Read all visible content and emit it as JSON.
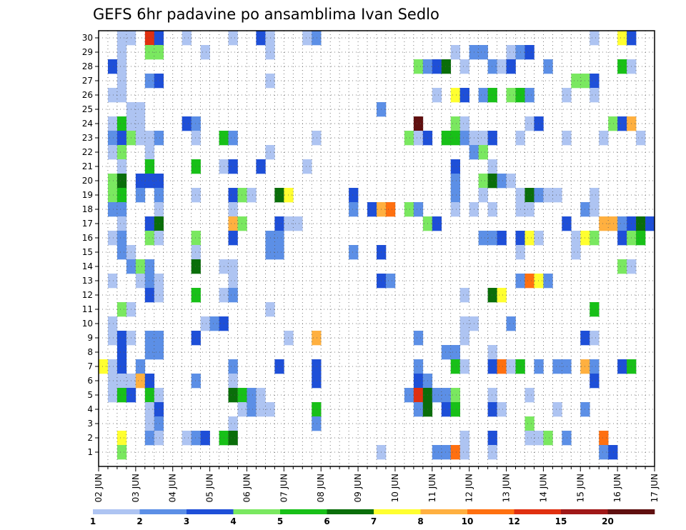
{
  "chart_data": {
    "type": "heatmap",
    "title": "GEFS 6hr padavine po ansamblima Ivan Sedlo",
    "y_ticks": [
      1,
      2,
      3,
      4,
      5,
      6,
      7,
      8,
      9,
      10,
      11,
      12,
      13,
      14,
      15,
      16,
      17,
      18,
      19,
      20,
      21,
      22,
      23,
      24,
      25,
      26,
      27,
      28,
      29,
      30
    ],
    "x_ticks": [
      "02 JUN",
      "03 JUN",
      "04 JUN",
      "05 JUN",
      "06 JUN",
      "07 JUN",
      "08 JUN",
      "09 JUN",
      "10 JUN",
      "11 JUN",
      "12 JUN",
      "13 JUN",
      "14 JUN",
      "15 JUN",
      "16 JUN",
      "17 JUN"
    ],
    "grid": true,
    "colorbar": {
      "labels": [
        "1",
        "2",
        "3",
        "4",
        "5",
        "6",
        "7",
        "8",
        "10",
        "12",
        "15",
        "20"
      ],
      "colors": [
        "#aec4f2",
        "#5c8fe6",
        "#1e4fd8",
        "#7ae860",
        "#18c018",
        "#0a6e0a",
        "#ffff30",
        "#ffb040",
        "#ff7010",
        "#e03010",
        "#a01818",
        "#601010"
      ]
    },
    "cells_note_levels": "Each cell: [column (6h step index from 02 JUN 00z), member row, color level 0-11]",
    "cells": [
      [
        2,
        30,
        0
      ],
      [
        3,
        30,
        0
      ],
      [
        5,
        30,
        9
      ],
      [
        6,
        30,
        2
      ],
      [
        9,
        30,
        0
      ],
      [
        14,
        30,
        0
      ],
      [
        17,
        30,
        2
      ],
      [
        18,
        30,
        0
      ],
      [
        22,
        30,
        0
      ],
      [
        23,
        30,
        1
      ],
      [
        53,
        30,
        0
      ],
      [
        56,
        30,
        6
      ],
      [
        57,
        30,
        2
      ],
      [
        2,
        29,
        0
      ],
      [
        5,
        29,
        3
      ],
      [
        6,
        29,
        3
      ],
      [
        11,
        29,
        0
      ],
      [
        18,
        29,
        0
      ],
      [
        38,
        29,
        0
      ],
      [
        40,
        29,
        1
      ],
      [
        41,
        29,
        1
      ],
      [
        44,
        29,
        0
      ],
      [
        45,
        29,
        1
      ],
      [
        46,
        29,
        2
      ],
      [
        1,
        28,
        2
      ],
      [
        2,
        28,
        0
      ],
      [
        34,
        28,
        3
      ],
      [
        35,
        28,
        1
      ],
      [
        36,
        28,
        2
      ],
      [
        37,
        28,
        5
      ],
      [
        39,
        28,
        0
      ],
      [
        42,
        28,
        1
      ],
      [
        43,
        28,
        0
      ],
      [
        44,
        28,
        2
      ],
      [
        48,
        28,
        1
      ],
      [
        56,
        28,
        4
      ],
      [
        57,
        28,
        0
      ],
      [
        2,
        27,
        0
      ],
      [
        5,
        27,
        1
      ],
      [
        6,
        27,
        2
      ],
      [
        18,
        27,
        0
      ],
      [
        51,
        27,
        3
      ],
      [
        52,
        27,
        3
      ],
      [
        53,
        27,
        2
      ],
      [
        1,
        26,
        0
      ],
      [
        2,
        26,
        0
      ],
      [
        36,
        26,
        0
      ],
      [
        38,
        26,
        6
      ],
      [
        39,
        26,
        2
      ],
      [
        41,
        26,
        1
      ],
      [
        42,
        26,
        4
      ],
      [
        44,
        26,
        3
      ],
      [
        45,
        26,
        4
      ],
      [
        46,
        26,
        1
      ],
      [
        50,
        26,
        0
      ],
      [
        53,
        26,
        0
      ],
      [
        3,
        25,
        0
      ],
      [
        4,
        25,
        0
      ],
      [
        30,
        25,
        1
      ],
      [
        1,
        24,
        0
      ],
      [
        2,
        24,
        4
      ],
      [
        3,
        24,
        0
      ],
      [
        4,
        24,
        0
      ],
      [
        9,
        24,
        2
      ],
      [
        10,
        24,
        1
      ],
      [
        34,
        24,
        11
      ],
      [
        38,
        24,
        3
      ],
      [
        39,
        24,
        0
      ],
      [
        46,
        24,
        0
      ],
      [
        47,
        24,
        2
      ],
      [
        55,
        24,
        3
      ],
      [
        56,
        24,
        2
      ],
      [
        57,
        24,
        7
      ],
      [
        1,
        23,
        1
      ],
      [
        2,
        23,
        2
      ],
      [
        3,
        23,
        3
      ],
      [
        4,
        23,
        0
      ],
      [
        5,
        23,
        0
      ],
      [
        6,
        23,
        1
      ],
      [
        10,
        23,
        0
      ],
      [
        13,
        23,
        4
      ],
      [
        14,
        23,
        1
      ],
      [
        23,
        23,
        0
      ],
      [
        33,
        23,
        3
      ],
      [
        34,
        23,
        0
      ],
      [
        35,
        23,
        2
      ],
      [
        37,
        23,
        4
      ],
      [
        38,
        23,
        4
      ],
      [
        39,
        23,
        1
      ],
      [
        40,
        23,
        0
      ],
      [
        41,
        23,
        0
      ],
      [
        42,
        23,
        2
      ],
      [
        45,
        23,
        0
      ],
      [
        50,
        23,
        0
      ],
      [
        54,
        23,
        0
      ],
      [
        58,
        23,
        0
      ],
      [
        1,
        22,
        0
      ],
      [
        2,
        22,
        3
      ],
      [
        5,
        22,
        0
      ],
      [
        18,
        22,
        0
      ],
      [
        40,
        22,
        1
      ],
      [
        41,
        22,
        3
      ],
      [
        2,
        21,
        0
      ],
      [
        5,
        21,
        4
      ],
      [
        10,
        21,
        4
      ],
      [
        13,
        21,
        0
      ],
      [
        14,
        21,
        2
      ],
      [
        17,
        21,
        2
      ],
      [
        22,
        21,
        0
      ],
      [
        38,
        21,
        2
      ],
      [
        42,
        21,
        0
      ],
      [
        1,
        20,
        3
      ],
      [
        2,
        20,
        5
      ],
      [
        4,
        20,
        2
      ],
      [
        5,
        20,
        2
      ],
      [
        6,
        20,
        2
      ],
      [
        38,
        20,
        1
      ],
      [
        41,
        20,
        3
      ],
      [
        42,
        20,
        5
      ],
      [
        43,
        20,
        1
      ],
      [
        44,
        20,
        0
      ],
      [
        1,
        19,
        3
      ],
      [
        2,
        19,
        4
      ],
      [
        4,
        19,
        1
      ],
      [
        6,
        19,
        1
      ],
      [
        10,
        19,
        0
      ],
      [
        14,
        19,
        2
      ],
      [
        15,
        19,
        3
      ],
      [
        16,
        19,
        0
      ],
      [
        19,
        19,
        5
      ],
      [
        20,
        19,
        6
      ],
      [
        27,
        19,
        2
      ],
      [
        38,
        19,
        1
      ],
      [
        41,
        19,
        0
      ],
      [
        45,
        19,
        0
      ],
      [
        46,
        19,
        5
      ],
      [
        47,
        19,
        1
      ],
      [
        48,
        19,
        0
      ],
      [
        49,
        19,
        0
      ],
      [
        53,
        19,
        0
      ],
      [
        1,
        18,
        1
      ],
      [
        2,
        18,
        1
      ],
      [
        6,
        18,
        0
      ],
      [
        14,
        18,
        0
      ],
      [
        27,
        18,
        1
      ],
      [
        29,
        18,
        2
      ],
      [
        30,
        18,
        7
      ],
      [
        31,
        18,
        8
      ],
      [
        33,
        18,
        3
      ],
      [
        34,
        18,
        1
      ],
      [
        38,
        18,
        0
      ],
      [
        40,
        18,
        0
      ],
      [
        42,
        18,
        0
      ],
      [
        45,
        18,
        0
      ],
      [
        46,
        18,
        0
      ],
      [
        52,
        18,
        1
      ],
      [
        53,
        18,
        0
      ],
      [
        2,
        17,
        0
      ],
      [
        5,
        17,
        2
      ],
      [
        6,
        17,
        5
      ],
      [
        14,
        17,
        7
      ],
      [
        15,
        17,
        3
      ],
      [
        19,
        17,
        2
      ],
      [
        20,
        17,
        0
      ],
      [
        21,
        17,
        0
      ],
      [
        35,
        17,
        3
      ],
      [
        36,
        17,
        2
      ],
      [
        50,
        17,
        2
      ],
      [
        54,
        17,
        7
      ],
      [
        55,
        17,
        7
      ],
      [
        56,
        17,
        1
      ],
      [
        57,
        17,
        2
      ],
      [
        58,
        17,
        5
      ],
      [
        59,
        17,
        2
      ],
      [
        1,
        16,
        0
      ],
      [
        2,
        16,
        1
      ],
      [
        5,
        16,
        3
      ],
      [
        6,
        16,
        0
      ],
      [
        10,
        16,
        3
      ],
      [
        14,
        16,
        2
      ],
      [
        18,
        16,
        1
      ],
      [
        19,
        16,
        1
      ],
      [
        41,
        16,
        1
      ],
      [
        42,
        16,
        1
      ],
      [
        43,
        16,
        2
      ],
      [
        45,
        16,
        2
      ],
      [
        46,
        16,
        6
      ],
      [
        47,
        16,
        0
      ],
      [
        51,
        16,
        0
      ],
      [
        52,
        16,
        6
      ],
      [
        53,
        16,
        3
      ],
      [
        56,
        16,
        2
      ],
      [
        57,
        16,
        3
      ],
      [
        58,
        16,
        4
      ],
      [
        2,
        15,
        1
      ],
      [
        3,
        15,
        0
      ],
      [
        10,
        15,
        0
      ],
      [
        18,
        15,
        1
      ],
      [
        19,
        15,
        1
      ],
      [
        27,
        15,
        1
      ],
      [
        30,
        15,
        2
      ],
      [
        45,
        15,
        0
      ],
      [
        51,
        15,
        0
      ],
      [
        3,
        14,
        1
      ],
      [
        4,
        14,
        3
      ],
      [
        5,
        14,
        1
      ],
      [
        10,
        14,
        5
      ],
      [
        13,
        14,
        0
      ],
      [
        14,
        14,
        0
      ],
      [
        56,
        14,
        3
      ],
      [
        57,
        14,
        0
      ],
      [
        1,
        13,
        0
      ],
      [
        4,
        13,
        0
      ],
      [
        5,
        13,
        1
      ],
      [
        6,
        13,
        0
      ],
      [
        14,
        13,
        0
      ],
      [
        30,
        13,
        2
      ],
      [
        31,
        13,
        1
      ],
      [
        45,
        13,
        1
      ],
      [
        46,
        13,
        8
      ],
      [
        47,
        13,
        6
      ],
      [
        48,
        13,
        1
      ],
      [
        5,
        12,
        2
      ],
      [
        6,
        12,
        0
      ],
      [
        10,
        12,
        4
      ],
      [
        13,
        12,
        0
      ],
      [
        14,
        12,
        1
      ],
      [
        39,
        12,
        0
      ],
      [
        42,
        12,
        5
      ],
      [
        43,
        12,
        6
      ],
      [
        2,
        11,
        3
      ],
      [
        3,
        11,
        0
      ],
      [
        18,
        11,
        0
      ],
      [
        53,
        11,
        4
      ],
      [
        1,
        10,
        0
      ],
      [
        11,
        10,
        0
      ],
      [
        12,
        10,
        1
      ],
      [
        13,
        10,
        2
      ],
      [
        39,
        10,
        0
      ],
      [
        40,
        10,
        0
      ],
      [
        44,
        10,
        1
      ],
      [
        1,
        9,
        0
      ],
      [
        2,
        9,
        2
      ],
      [
        3,
        9,
        0
      ],
      [
        5,
        9,
        1
      ],
      [
        6,
        9,
        1
      ],
      [
        10,
        9,
        2
      ],
      [
        20,
        9,
        0
      ],
      [
        23,
        9,
        7
      ],
      [
        34,
        9,
        1
      ],
      [
        39,
        9,
        0
      ],
      [
        52,
        9,
        2
      ],
      [
        53,
        9,
        0
      ],
      [
        2,
        8,
        2
      ],
      [
        5,
        8,
        1
      ],
      [
        6,
        8,
        1
      ],
      [
        38,
        8,
        1
      ],
      [
        37,
        8,
        1
      ],
      [
        42,
        8,
        0
      ],
      [
        0,
        7,
        6
      ],
      [
        1,
        7,
        0
      ],
      [
        2,
        7,
        2
      ],
      [
        4,
        7,
        1
      ],
      [
        14,
        7,
        1
      ],
      [
        19,
        7,
        2
      ],
      [
        23,
        7,
        2
      ],
      [
        34,
        7,
        1
      ],
      [
        38,
        7,
        4
      ],
      [
        39,
        7,
        0
      ],
      [
        42,
        7,
        2
      ],
      [
        43,
        7,
        8
      ],
      [
        44,
        7,
        0
      ],
      [
        45,
        7,
        4
      ],
      [
        47,
        7,
        1
      ],
      [
        49,
        7,
        1
      ],
      [
        50,
        7,
        1
      ],
      [
        52,
        7,
        7
      ],
      [
        53,
        7,
        1
      ],
      [
        56,
        7,
        2
      ],
      [
        57,
        7,
        4
      ],
      [
        1,
        6,
        0
      ],
      [
        2,
        6,
        0
      ],
      [
        3,
        6,
        0
      ],
      [
        4,
        6,
        7
      ],
      [
        5,
        6,
        2
      ],
      [
        10,
        6,
        1
      ],
      [
        14,
        6,
        0
      ],
      [
        23,
        6,
        2
      ],
      [
        34,
        6,
        2
      ],
      [
        35,
        6,
        1
      ],
      [
        53,
        6,
        2
      ],
      [
        1,
        5,
        0
      ],
      [
        2,
        5,
        4
      ],
      [
        3,
        5,
        2
      ],
      [
        5,
        5,
        4
      ],
      [
        6,
        5,
        0
      ],
      [
        14,
        5,
        5
      ],
      [
        15,
        5,
        4
      ],
      [
        16,
        5,
        1
      ],
      [
        17,
        5,
        0
      ],
      [
        33,
        5,
        1
      ],
      [
        34,
        5,
        9
      ],
      [
        35,
        5,
        5
      ],
      [
        36,
        5,
        1
      ],
      [
        37,
        5,
        1
      ],
      [
        38,
        5,
        3
      ],
      [
        42,
        5,
        0
      ],
      [
        46,
        5,
        0
      ],
      [
        5,
        4,
        0
      ],
      [
        6,
        4,
        2
      ],
      [
        15,
        4,
        0
      ],
      [
        16,
        4,
        1
      ],
      [
        17,
        4,
        0
      ],
      [
        18,
        4,
        0
      ],
      [
        23,
        4,
        4
      ],
      [
        34,
        4,
        1
      ],
      [
        35,
        4,
        5
      ],
      [
        37,
        4,
        2
      ],
      [
        38,
        4,
        4
      ],
      [
        42,
        4,
        2
      ],
      [
        43,
        4,
        0
      ],
      [
        49,
        4,
        0
      ],
      [
        52,
        4,
        1
      ],
      [
        5,
        3,
        0
      ],
      [
        6,
        3,
        1
      ],
      [
        14,
        3,
        0
      ],
      [
        23,
        3,
        1
      ],
      [
        46,
        3,
        3
      ],
      [
        2,
        2,
        6
      ],
      [
        5,
        2,
        1
      ],
      [
        6,
        2,
        0
      ],
      [
        9,
        2,
        0
      ],
      [
        10,
        2,
        1
      ],
      [
        11,
        2,
        2
      ],
      [
        13,
        2,
        4
      ],
      [
        14,
        2,
        5
      ],
      [
        39,
        2,
        0
      ],
      [
        42,
        2,
        2
      ],
      [
        46,
        2,
        0
      ],
      [
        47,
        2,
        0
      ],
      [
        48,
        2,
        3
      ],
      [
        50,
        2,
        1
      ],
      [
        54,
        2,
        8
      ],
      [
        2,
        1,
        3
      ],
      [
        30,
        1,
        0
      ],
      [
        36,
        1,
        1
      ],
      [
        37,
        1,
        1
      ],
      [
        38,
        1,
        8
      ],
      [
        39,
        1,
        0
      ],
      [
        42,
        1,
        0
      ],
      [
        54,
        1,
        1
      ],
      [
        55,
        1,
        2
      ]
    ]
  }
}
